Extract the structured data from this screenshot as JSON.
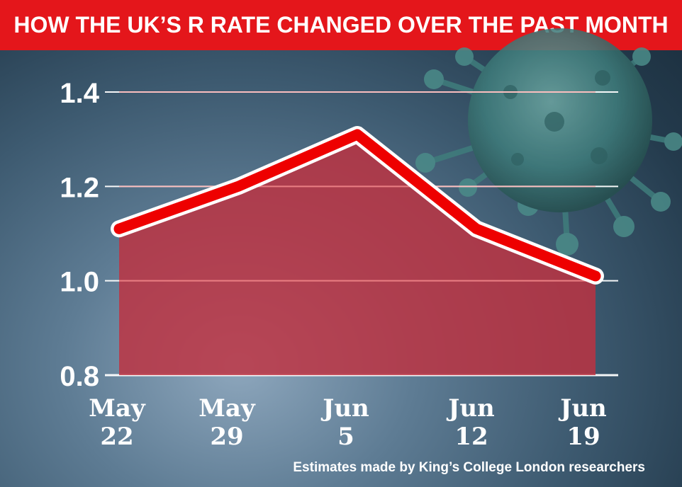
{
  "colors": {
    "banner": "#e4161b",
    "line": "#ee0000",
    "line_outline": "#ffffff",
    "area": "#c0313f",
    "grid": "#ffffff",
    "virus": "#3f7d7c"
  },
  "icons": {
    "background": "coronavirus-particle-icon"
  },
  "chart_data": {
    "type": "area",
    "title": "HOW THE UK’S R RATE CHANGED OVER THE PAST MONTH",
    "categories": [
      "May 22",
      "May 29",
      "Jun 5",
      "Jun 12",
      "Jun 19"
    ],
    "x_labels": [
      {
        "line1": "May",
        "line2": "22"
      },
      {
        "line1": "May",
        "line2": "29"
      },
      {
        "line1": "Jun",
        "line2": "5"
      },
      {
        "line1": "Jun",
        "line2": "12"
      },
      {
        "line1": "Jun",
        "line2": "19"
      }
    ],
    "x_days": [
      0,
      7,
      14,
      21,
      28
    ],
    "series": [
      {
        "name": "R rate",
        "values": [
          1.11,
          1.2,
          1.31,
          1.11,
          1.01
        ]
      }
    ],
    "yticks": [
      "1.4",
      "1.2",
      "1.0",
      "0.8"
    ],
    "ytick_values": [
      1.4,
      1.2,
      1.0,
      0.8
    ],
    "ylim": [
      0.8,
      1.4
    ],
    "xlabel": "",
    "ylabel": "",
    "grid": true,
    "source": "Estimates made by King’s College London researchers"
  }
}
